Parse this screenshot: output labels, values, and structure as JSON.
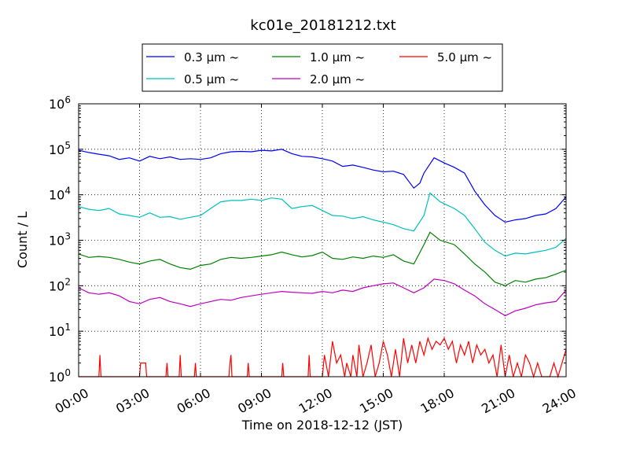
{
  "chart_data": {
    "type": "line",
    "title": "kc01e_20181212.txt",
    "xlabel": "Time on 2018-12-12 (JST)",
    "ylabel": "Count / L",
    "yscale": "log",
    "ylim": [
      1,
      1000000
    ],
    "xlim": [
      0,
      24
    ],
    "grid": true,
    "legend_position": "top-center",
    "x_tick_labels": [
      "00:00",
      "03:00",
      "06:00",
      "09:00",
      "12:00",
      "15:00",
      "18:00",
      "21:00",
      "24:00"
    ],
    "y_tick_labels": [
      {
        "base": "10",
        "exp": "0",
        "value": 1
      },
      {
        "base": "10",
        "exp": "1",
        "value": 10
      },
      {
        "base": "10",
        "exp": "2",
        "value": 100
      },
      {
        "base": "10",
        "exp": "3",
        "value": 1000
      },
      {
        "base": "10",
        "exp": "4",
        "value": 10000
      },
      {
        "base": "10",
        "exp": "5",
        "value": 100000
      },
      {
        "base": "10",
        "exp": "6",
        "value": 1000000
      }
    ],
    "series": [
      {
        "name": "0.3 μm ~",
        "color": "#0000ff",
        "points": [
          [
            0,
            95000
          ],
          [
            0.5,
            85000
          ],
          [
            1,
            78000
          ],
          [
            1.5,
            72000
          ],
          [
            2,
            60000
          ],
          [
            2.5,
            65000
          ],
          [
            3,
            55000
          ],
          [
            3.5,
            70000
          ],
          [
            4,
            62000
          ],
          [
            4.5,
            68000
          ],
          [
            5,
            60000
          ],
          [
            5.5,
            62000
          ],
          [
            6,
            60000
          ],
          [
            6.5,
            65000
          ],
          [
            7,
            80000
          ],
          [
            7.5,
            88000
          ],
          [
            8,
            90000
          ],
          [
            8.5,
            88000
          ],
          [
            9,
            95000
          ],
          [
            9.5,
            92000
          ],
          [
            10,
            100000
          ],
          [
            10.5,
            80000
          ],
          [
            11,
            70000
          ],
          [
            11.5,
            68000
          ],
          [
            12,
            62000
          ],
          [
            12.5,
            55000
          ],
          [
            13,
            42000
          ],
          [
            13.5,
            45000
          ],
          [
            14,
            40000
          ],
          [
            14.5,
            35000
          ],
          [
            15,
            32000
          ],
          [
            15.5,
            33000
          ],
          [
            16,
            28000
          ],
          [
            16.5,
            14000
          ],
          [
            16.8,
            18000
          ],
          [
            17,
            30000
          ],
          [
            17.5,
            65000
          ],
          [
            18,
            50000
          ],
          [
            18.5,
            40000
          ],
          [
            19,
            30000
          ],
          [
            19.5,
            12000
          ],
          [
            20,
            6000
          ],
          [
            20.5,
            3500
          ],
          [
            21,
            2500
          ],
          [
            21.5,
            2800
          ],
          [
            22,
            3000
          ],
          [
            22.5,
            3500
          ],
          [
            23,
            3800
          ],
          [
            23.5,
            5000
          ],
          [
            24,
            9000
          ]
        ]
      },
      {
        "name": "0.5 μm ~",
        "color": "#00bfbf",
        "points": [
          [
            0,
            5500
          ],
          [
            0.5,
            4800
          ],
          [
            1,
            4500
          ],
          [
            1.5,
            5000
          ],
          [
            2,
            3800
          ],
          [
            2.5,
            3500
          ],
          [
            3,
            3200
          ],
          [
            3.5,
            4000
          ],
          [
            4,
            3200
          ],
          [
            4.5,
            3300
          ],
          [
            5,
            2900
          ],
          [
            5.5,
            3200
          ],
          [
            6,
            3500
          ],
          [
            6.5,
            5000
          ],
          [
            7,
            7000
          ],
          [
            7.5,
            7500
          ],
          [
            8,
            7500
          ],
          [
            8.5,
            8000
          ],
          [
            9,
            7500
          ],
          [
            9.5,
            8500
          ],
          [
            10,
            8000
          ],
          [
            10.5,
            5000
          ],
          [
            11,
            5500
          ],
          [
            11.5,
            5800
          ],
          [
            12,
            4500
          ],
          [
            12.5,
            3500
          ],
          [
            13,
            3400
          ],
          [
            13.5,
            3000
          ],
          [
            14,
            3300
          ],
          [
            14.5,
            2800
          ],
          [
            15,
            2500
          ],
          [
            15.5,
            2200
          ],
          [
            16,
            1800
          ],
          [
            16.5,
            1600
          ],
          [
            17,
            3500
          ],
          [
            17.3,
            11000
          ],
          [
            17.8,
            7000
          ],
          [
            18.5,
            5000
          ],
          [
            19,
            3500
          ],
          [
            19.5,
            1800
          ],
          [
            20,
            900
          ],
          [
            20.5,
            600
          ],
          [
            21,
            450
          ],
          [
            21.5,
            520
          ],
          [
            22,
            500
          ],
          [
            22.5,
            550
          ],
          [
            23,
            600
          ],
          [
            23.5,
            700
          ],
          [
            24,
            1100
          ]
        ]
      },
      {
        "name": "1.0 μm ~",
        "color": "#008000",
        "points": [
          [
            0,
            500
          ],
          [
            0.5,
            420
          ],
          [
            1,
            440
          ],
          [
            1.5,
            420
          ],
          [
            2,
            380
          ],
          [
            2.5,
            330
          ],
          [
            3,
            300
          ],
          [
            3.5,
            350
          ],
          [
            4,
            380
          ],
          [
            4.5,
            300
          ],
          [
            5,
            250
          ],
          [
            5.5,
            230
          ],
          [
            6,
            280
          ],
          [
            6.5,
            300
          ],
          [
            7,
            380
          ],
          [
            7.5,
            420
          ],
          [
            8,
            400
          ],
          [
            8.5,
            420
          ],
          [
            9,
            450
          ],
          [
            9.5,
            480
          ],
          [
            10,
            550
          ],
          [
            10.5,
            480
          ],
          [
            11,
            430
          ],
          [
            11.5,
            460
          ],
          [
            12,
            550
          ],
          [
            12.5,
            400
          ],
          [
            13,
            380
          ],
          [
            13.5,
            430
          ],
          [
            14,
            400
          ],
          [
            14.5,
            450
          ],
          [
            15,
            420
          ],
          [
            15.5,
            480
          ],
          [
            16,
            350
          ],
          [
            16.5,
            300
          ],
          [
            17,
            800
          ],
          [
            17.3,
            1500
          ],
          [
            17.8,
            1000
          ],
          [
            18.5,
            800
          ],
          [
            19,
            500
          ],
          [
            19.5,
            300
          ],
          [
            20,
            200
          ],
          [
            20.5,
            120
          ],
          [
            21,
            100
          ],
          [
            21.5,
            130
          ],
          [
            22,
            120
          ],
          [
            22.5,
            140
          ],
          [
            23,
            150
          ],
          [
            23.5,
            180
          ],
          [
            24,
            220
          ]
        ]
      },
      {
        "name": "2.0 μm ~",
        "color": "#bf00bf",
        "points": [
          [
            0,
            90
          ],
          [
            0.5,
            70
          ],
          [
            1,
            65
          ],
          [
            1.5,
            70
          ],
          [
            2,
            60
          ],
          [
            2.5,
            45
          ],
          [
            3,
            40
          ],
          [
            3.5,
            50
          ],
          [
            4,
            55
          ],
          [
            4.5,
            45
          ],
          [
            5,
            40
          ],
          [
            5.5,
            35
          ],
          [
            6,
            40
          ],
          [
            6.5,
            45
          ],
          [
            7,
            50
          ],
          [
            7.5,
            48
          ],
          [
            8,
            55
          ],
          [
            8.5,
            60
          ],
          [
            9,
            65
          ],
          [
            9.5,
            70
          ],
          [
            10,
            75
          ],
          [
            10.5,
            72
          ],
          [
            11,
            70
          ],
          [
            11.5,
            68
          ],
          [
            12,
            75
          ],
          [
            12.5,
            70
          ],
          [
            13,
            80
          ],
          [
            13.5,
            75
          ],
          [
            14,
            90
          ],
          [
            14.5,
            100
          ],
          [
            15,
            110
          ],
          [
            15.5,
            115
          ],
          [
            16,
            90
          ],
          [
            16.5,
            70
          ],
          [
            17,
            90
          ],
          [
            17.5,
            140
          ],
          [
            18,
            130
          ],
          [
            18.5,
            110
          ],
          [
            19,
            80
          ],
          [
            19.5,
            60
          ],
          [
            20,
            40
          ],
          [
            20.5,
            30
          ],
          [
            21,
            22
          ],
          [
            21.5,
            28
          ],
          [
            22,
            32
          ],
          [
            22.5,
            38
          ],
          [
            23,
            42
          ],
          [
            23.5,
            45
          ],
          [
            24,
            80
          ]
        ]
      },
      {
        "name": "5.0 μm ~",
        "color": "#ff0000",
        "points": [
          [
            0,
            1
          ],
          [
            1.0,
            1
          ],
          [
            1.05,
            3
          ],
          [
            1.1,
            1
          ],
          [
            3.0,
            1
          ],
          [
            3.05,
            2
          ],
          [
            3.3,
            2
          ],
          [
            3.35,
            1
          ],
          [
            4.3,
            1
          ],
          [
            4.35,
            2
          ],
          [
            4.4,
            1
          ],
          [
            4.95,
            1
          ],
          [
            5.0,
            3
          ],
          [
            5.05,
            1
          ],
          [
            5.7,
            1
          ],
          [
            5.75,
            2
          ],
          [
            5.8,
            1
          ],
          [
            7.4,
            1
          ],
          [
            7.45,
            2
          ],
          [
            7.5,
            3
          ],
          [
            7.55,
            1
          ],
          [
            8.3,
            1
          ],
          [
            8.35,
            2
          ],
          [
            8.4,
            1
          ],
          [
            10.0,
            1
          ],
          [
            10.05,
            2
          ],
          [
            10.1,
            1
          ],
          [
            11.3,
            1
          ],
          [
            11.35,
            3
          ],
          [
            11.4,
            1
          ],
          [
            12.0,
            1
          ],
          [
            12.1,
            3
          ],
          [
            12.3,
            1
          ],
          [
            12.5,
            6
          ],
          [
            12.7,
            2
          ],
          [
            12.9,
            3
          ],
          [
            13.1,
            1
          ],
          [
            13.2,
            2
          ],
          [
            13.4,
            1
          ],
          [
            13.5,
            3
          ],
          [
            13.7,
            1
          ],
          [
            13.8,
            5
          ],
          [
            14.0,
            1
          ],
          [
            14.2,
            2
          ],
          [
            14.4,
            5
          ],
          [
            14.6,
            1
          ],
          [
            14.8,
            2
          ],
          [
            15.0,
            6
          ],
          [
            15.2,
            3
          ],
          [
            15.4,
            1
          ],
          [
            15.6,
            4
          ],
          [
            15.8,
            1
          ],
          [
            16.0,
            7
          ],
          [
            16.2,
            2
          ],
          [
            16.4,
            5
          ],
          [
            16.6,
            2
          ],
          [
            16.8,
            6
          ],
          [
            17.0,
            3
          ],
          [
            17.2,
            7
          ],
          [
            17.4,
            4
          ],
          [
            17.6,
            6
          ],
          [
            17.8,
            5
          ],
          [
            18.0,
            7
          ],
          [
            18.2,
            4
          ],
          [
            18.4,
            6
          ],
          [
            18.6,
            2
          ],
          [
            18.8,
            5
          ],
          [
            19.0,
            3
          ],
          [
            19.2,
            6
          ],
          [
            19.4,
            2
          ],
          [
            19.6,
            5
          ],
          [
            19.8,
            3
          ],
          [
            20.0,
            4
          ],
          [
            20.2,
            2
          ],
          [
            20.4,
            3
          ],
          [
            20.6,
            1
          ],
          [
            20.8,
            5
          ],
          [
            21.0,
            1
          ],
          [
            21.2,
            3
          ],
          [
            21.4,
            1
          ],
          [
            21.6,
            2
          ],
          [
            21.8,
            1
          ],
          [
            22.0,
            3
          ],
          [
            22.2,
            2
          ],
          [
            22.4,
            1
          ],
          [
            22.6,
            2
          ],
          [
            22.8,
            1
          ],
          [
            23.2,
            1
          ],
          [
            23.4,
            2
          ],
          [
            23.6,
            1
          ],
          [
            23.8,
            2
          ],
          [
            24,
            4
          ]
        ]
      }
    ]
  }
}
